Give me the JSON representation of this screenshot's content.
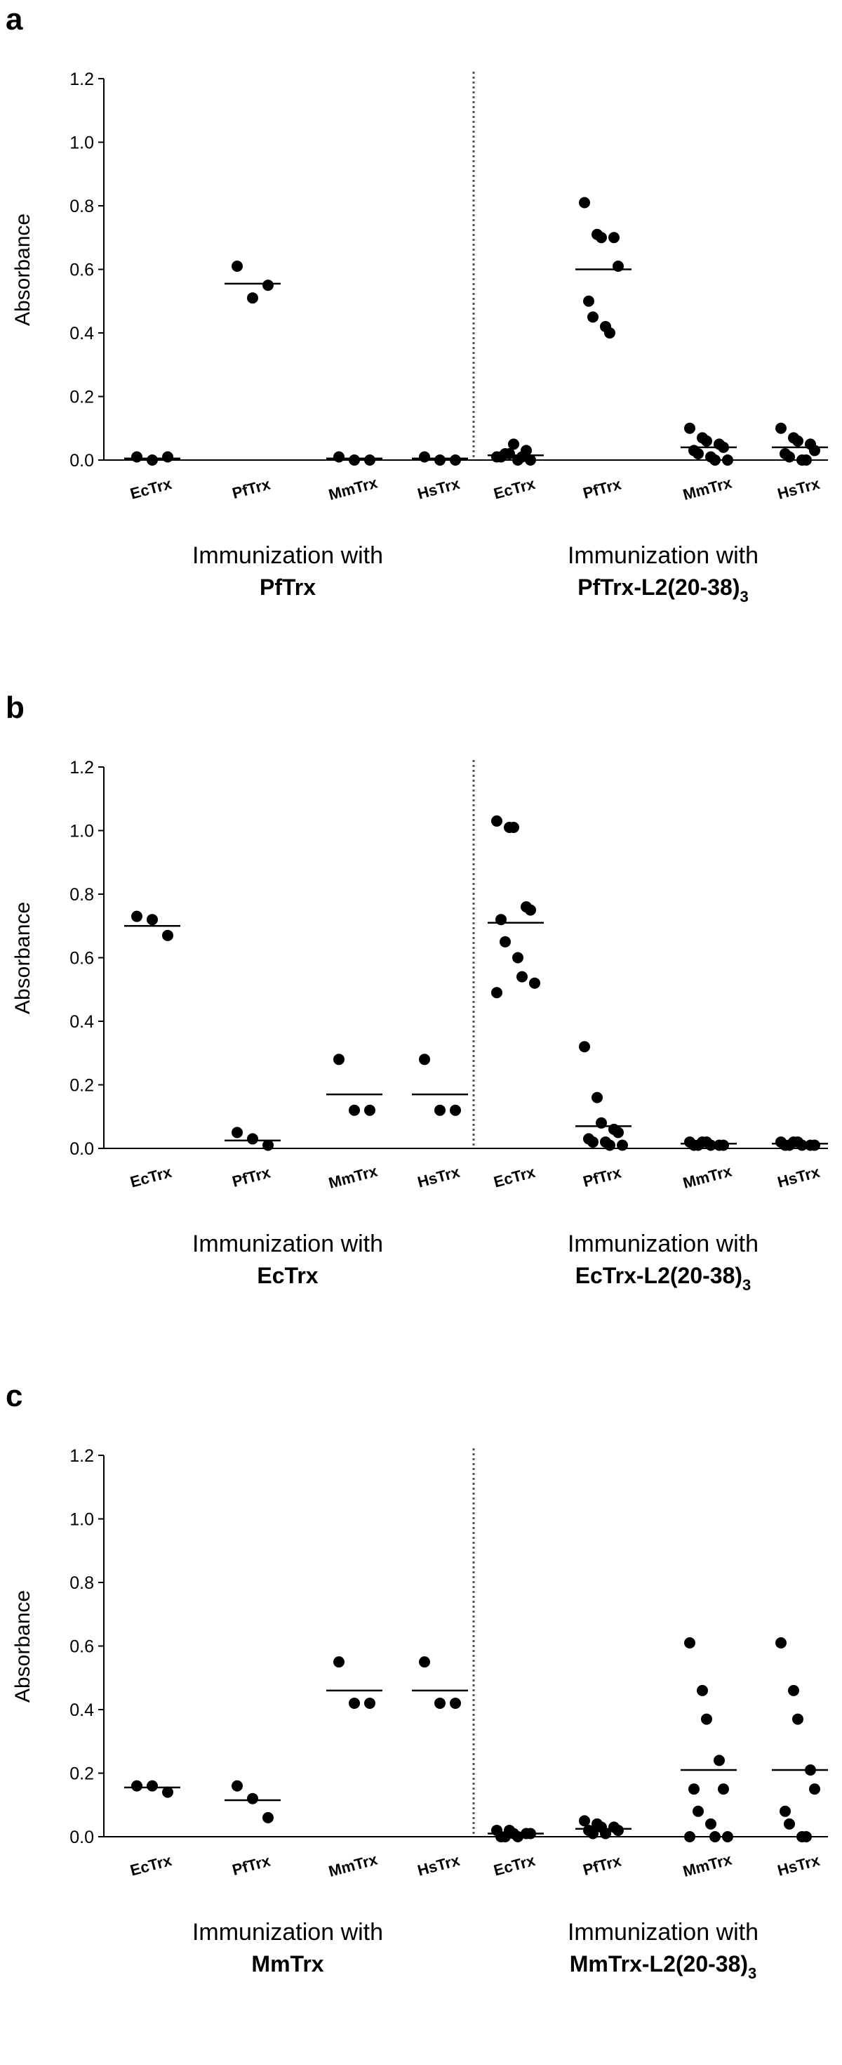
{
  "chart_data": [
    {
      "panel": "a",
      "type": "scatter",
      "ylabel": "Absorbance",
      "ylim": [
        0,
        1.2
      ],
      "yticks": [
        "0.0",
        "0.2",
        "0.4",
        "0.6",
        "0.8",
        "1.0",
        "1.2"
      ],
      "grid": false,
      "groups": [
        {
          "label": "Immunization with",
          "name": "PfTrx",
          "name_sub": "",
          "categories": [
            {
              "label": "EcTrx",
              "points": [
                0.01,
                0.0,
                0.01
              ],
              "mean": 0.005
            },
            {
              "label": "PfTrx",
              "points": [
                0.61,
                0.51,
                0.55
              ],
              "mean": 0.555
            },
            {
              "label": "MmTrx",
              "points": [
                0.01,
                0.0,
                0.0
              ],
              "mean": 0.005
            },
            {
              "label": "HsTrx",
              "points": [
                0.01,
                0.0,
                0.0
              ],
              "mean": 0.005
            }
          ]
        },
        {
          "label": "Immunization with",
          "name": "PfTrx-L2(20-38)",
          "name_sub": "3",
          "categories": [
            {
              "label": "EcTrx",
              "points": [
                0.01,
                0.02,
                0.05,
                0.03,
                0.0,
                0.01,
                0.02,
                0.0,
                0.01
              ],
              "mean": 0.015
            },
            {
              "label": "PfTrx",
              "points": [
                0.81,
                0.71,
                0.7,
                0.7,
                0.61,
                0.5,
                0.45,
                0.42,
                0.4
              ],
              "mean": 0.6
            },
            {
              "label": "MmTrx",
              "points": [
                0.1,
                0.07,
                0.06,
                0.05,
                0.04,
                0.03,
                0.02,
                0.01,
                0.0,
                0.0
              ],
              "mean": 0.04
            },
            {
              "label": "HsTrx",
              "points": [
                0.1,
                0.07,
                0.06,
                0.05,
                0.03,
                0.02,
                0.01,
                0.0,
                0.0
              ],
              "mean": 0.04
            }
          ]
        }
      ]
    },
    {
      "panel": "b",
      "type": "scatter",
      "ylabel": "Absorbance",
      "ylim": [
        0,
        1.2
      ],
      "yticks": [
        "0.0",
        "0.2",
        "0.4",
        "0.6",
        "0.8",
        "1.0",
        "1.2"
      ],
      "grid": false,
      "groups": [
        {
          "label": "Immunization with",
          "name": "EcTrx",
          "name_sub": "",
          "categories": [
            {
              "label": "EcTrx",
              "points": [
                0.73,
                0.72,
                0.67
              ],
              "mean": 0.7
            },
            {
              "label": "PfTrx",
              "points": [
                0.05,
                0.03,
                0.01
              ],
              "mean": 0.025
            },
            {
              "label": "MmTrx",
              "points": [
                0.28,
                0.12,
                0.12
              ],
              "mean": 0.17
            },
            {
              "label": "HsTrx",
              "points": [
                0.28,
                0.12,
                0.12
              ],
              "mean": 0.17
            }
          ]
        },
        {
          "label": "Immunization with",
          "name": "EcTrx-L2(20-38)",
          "name_sub": "3",
          "categories": [
            {
              "label": "EcTrx",
              "points": [
                1.03,
                1.01,
                1.01,
                0.76,
                0.75,
                0.72,
                0.65,
                0.6,
                0.54,
                0.52,
                0.49
              ],
              "mean": 0.71
            },
            {
              "label": "PfTrx",
              "points": [
                0.32,
                0.16,
                0.08,
                0.06,
                0.05,
                0.03,
                0.02,
                0.02,
                0.01,
                0.01
              ],
              "mean": 0.07
            },
            {
              "label": "MmTrx",
              "points": [
                0.02,
                0.02,
                0.02,
                0.01,
                0.01,
                0.01,
                0.01,
                0.01
              ],
              "mean": 0.015
            },
            {
              "label": "HsTrx",
              "points": [
                0.02,
                0.02,
                0.02,
                0.01,
                0.01,
                0.01,
                0.01,
                0.01
              ],
              "mean": 0.015
            }
          ]
        }
      ]
    },
    {
      "panel": "c",
      "type": "scatter",
      "ylabel": "Absorbance",
      "ylim": [
        0,
        1.2
      ],
      "yticks": [
        "0.0",
        "0.2",
        "0.4",
        "0.6",
        "0.8",
        "1.0",
        "1.2"
      ],
      "grid": false,
      "groups": [
        {
          "label": "Immunization with",
          "name": "MmTrx",
          "name_sub": "",
          "categories": [
            {
              "label": "EcTrx",
              "points": [
                0.16,
                0.16,
                0.14
              ],
              "mean": 0.155
            },
            {
              "label": "PfTrx",
              "points": [
                0.16,
                0.12,
                0.06
              ],
              "mean": 0.115
            },
            {
              "label": "MmTrx",
              "points": [
                0.55,
                0.42,
                0.42
              ],
              "mean": 0.46
            },
            {
              "label": "HsTrx",
              "points": [
                0.55,
                0.42,
                0.42
              ],
              "mean": 0.46
            }
          ]
        },
        {
          "label": "Immunization with",
          "name": "MmTrx-L2(20-38)",
          "name_sub": "3",
          "categories": [
            {
              "label": "EcTrx",
              "points": [
                0.02,
                0.02,
                0.01,
                0.01,
                0.01,
                0.0,
                0.0,
                0.0
              ],
              "mean": 0.01
            },
            {
              "label": "PfTrx",
              "points": [
                0.05,
                0.04,
                0.03,
                0.03,
                0.02,
                0.02,
                0.01,
                0.01
              ],
              "mean": 0.025
            },
            {
              "label": "MmTrx",
              "points": [
                0.61,
                0.46,
                0.37,
                0.24,
                0.15,
                0.15,
                0.08,
                0.04,
                0.0,
                0.0,
                0.0
              ],
              "mean": 0.21
            },
            {
              "label": "HsTrx",
              "points": [
                0.61,
                0.46,
                0.37,
                0.21,
                0.15,
                0.08,
                0.04,
                0.0,
                0.0
              ],
              "mean": 0.21
            }
          ]
        }
      ]
    }
  ]
}
